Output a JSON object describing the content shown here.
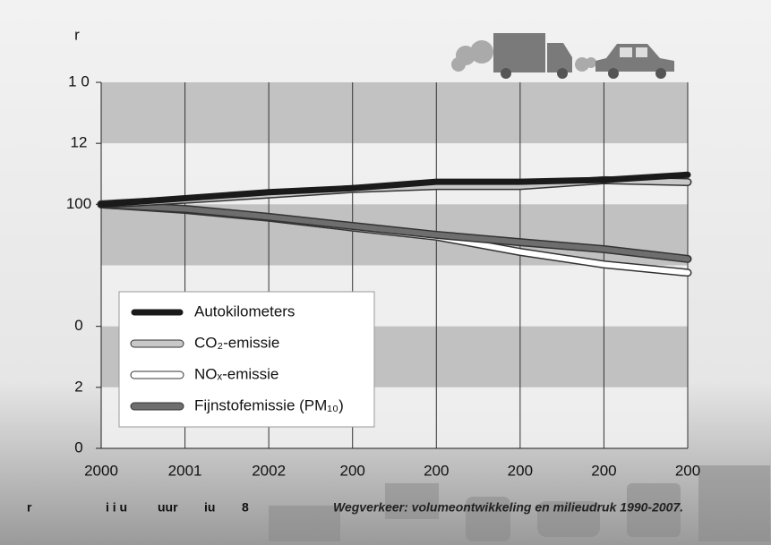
{
  "chart_data": {
    "type": "line",
    "y_axis_label": "r",
    "categories": [
      "2000",
      "2001",
      "2002",
      "200",
      "200",
      "200",
      "200",
      "200"
    ],
    "series": [
      {
        "name": "Autokilometers",
        "color": "#1a1a1a",
        "values": [
          100,
          102,
          104,
          105.3,
          107.4,
          107.4,
          108,
          109.7
        ]
      },
      {
        "name": "CO₂-emissie",
        "color": "#c8c8c8",
        "values": [
          100,
          101.5,
          103.2,
          105,
          106,
          106,
          107.9,
          107.3
        ]
      },
      {
        "name": "NOₓ-emissie",
        "color": "#ffffff",
        "values": [
          100,
          98.2,
          95.6,
          92.4,
          89.4,
          84.4,
          80.3,
          77.6
        ]
      },
      {
        "name": "Fijnstofemissie (PM₁₀)",
        "color": "#6e6e6e",
        "values": [
          100,
          98.5,
          95.9,
          92.9,
          90,
          87.6,
          85.3,
          82.1
        ]
      }
    ],
    "ylim": [
      20,
      140
    ],
    "yticks": [
      {
        "value": 20,
        "label": "0"
      },
      {
        "value": 40,
        "label": "2"
      },
      {
        "value": 60,
        "label": "0"
      },
      100,
      {
        "value": 120,
        "label": "12"
      },
      {
        "value": 140,
        "label": "1 0"
      }
    ],
    "grid": true,
    "footer": [
      "r",
      "i i u",
      "uur",
      "iu",
      "8"
    ],
    "source": "Wegverkeer: volumeontwikkeling en milieudruk 1990-2007."
  }
}
